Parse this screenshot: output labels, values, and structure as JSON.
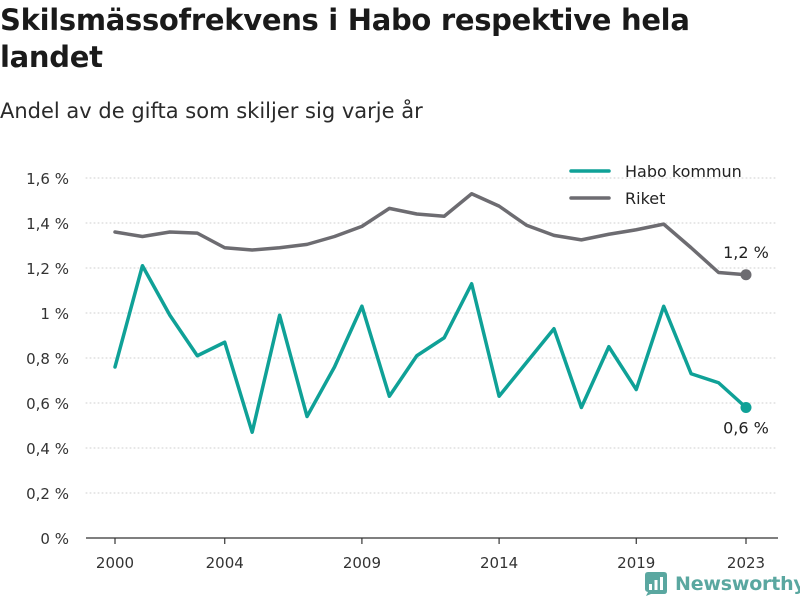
{
  "header": {
    "title": "Skilsmässofrekvens i Habo respektive hela landet",
    "subtitle": "Andel av de gifta som skiljer sig varje år"
  },
  "brand": {
    "name": "Newsworthy",
    "icon": "bar-chart-icon",
    "color": "#5aa7a0"
  },
  "chart_data": {
    "type": "line",
    "title": "Skilsmässofrekvens i Habo respektive hela landet",
    "subtitle": "Andel av de gifta som skiljer sig varje år",
    "xlabel": "",
    "ylabel": "",
    "x": [
      2000,
      2001,
      2002,
      2003,
      2004,
      2005,
      2006,
      2007,
      2008,
      2009,
      2010,
      2011,
      2012,
      2013,
      2014,
      2015,
      2016,
      2017,
      2018,
      2019,
      2020,
      2021,
      2022,
      2023
    ],
    "xticks": [
      2000,
      2004,
      2009,
      2014,
      2019,
      2023
    ],
    "xlim": [
      2000,
      2023
    ],
    "ylim": [
      0,
      1.6
    ],
    "yticks": [
      {
        "value": 0,
        "label": "0 %"
      },
      {
        "value": 0.2,
        "label": "0,2 %"
      },
      {
        "value": 0.4,
        "label": "0,4 %"
      },
      {
        "value": 0.6,
        "label": "0,6 %"
      },
      {
        "value": 0.8,
        "label": "0,8 %"
      },
      {
        "value": 1.0,
        "label": "1 %"
      },
      {
        "value": 1.2,
        "label": "1,2 %"
      },
      {
        "value": 1.4,
        "label": "1,4 %"
      },
      {
        "value": 1.6,
        "label": "1,6 %"
      }
    ],
    "grid": "horizontal",
    "legend_position": "top-right",
    "series": [
      {
        "name": "Habo kommun",
        "color": "#0fa197",
        "values": [
          0.76,
          1.21,
          0.99,
          0.81,
          0.87,
          0.47,
          0.99,
          0.54,
          0.76,
          1.03,
          0.63,
          0.81,
          0.89,
          1.13,
          0.63,
          0.78,
          0.93,
          0.58,
          0.85,
          0.66,
          1.03,
          0.73,
          0.69,
          0.58
        ],
        "end_label": "0,6 %"
      },
      {
        "name": "Riket",
        "color": "#6d6c71",
        "values": [
          1.36,
          1.34,
          1.36,
          1.355,
          1.29,
          1.28,
          1.29,
          1.305,
          1.34,
          1.385,
          1.465,
          1.44,
          1.43,
          1.53,
          1.475,
          1.39,
          1.345,
          1.325,
          1.35,
          1.37,
          1.395,
          1.29,
          1.18,
          1.17
        ],
        "end_label": "1,2 %"
      }
    ]
  }
}
